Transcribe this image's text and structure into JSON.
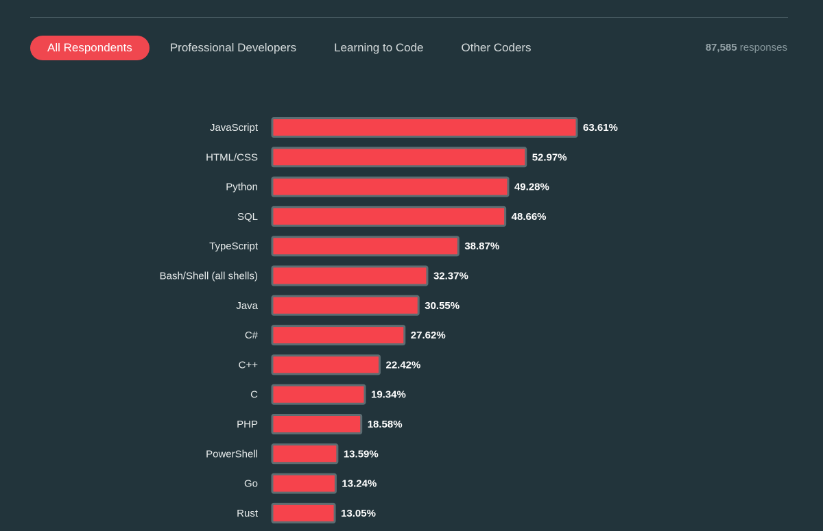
{
  "tabs": [
    {
      "label": "All Respondents",
      "active": true
    },
    {
      "label": "Professional Developers",
      "active": false
    },
    {
      "label": "Learning to Code",
      "active": false
    },
    {
      "label": "Other Coders",
      "active": false
    }
  ],
  "responses": {
    "count": "87,585",
    "label": "responses"
  },
  "colors": {
    "background": "#22343b",
    "accent": "#f0474f",
    "bar": "#f6434c",
    "bar_border": "#5d6d72"
  },
  "chart_data": {
    "type": "bar",
    "orientation": "horizontal",
    "categories": [
      "JavaScript",
      "HTML/CSS",
      "Python",
      "SQL",
      "TypeScript",
      "Bash/Shell (all shells)",
      "Java",
      "C#",
      "C++",
      "C",
      "PHP",
      "PowerShell",
      "Go",
      "Rust"
    ],
    "values": [
      63.61,
      52.97,
      49.28,
      48.66,
      38.87,
      32.37,
      30.55,
      27.62,
      22.42,
      19.34,
      18.58,
      13.59,
      13.24,
      13.05
    ],
    "value_labels": [
      "63.61%",
      "52.97%",
      "49.28%",
      "48.66%",
      "38.87%",
      "32.37%",
      "30.55%",
      "27.62%",
      "22.42%",
      "19.34%",
      "18.58%",
      "13.59%",
      "13.24%",
      "13.05%"
    ],
    "unit": "%",
    "grid": false,
    "legend": "none"
  }
}
